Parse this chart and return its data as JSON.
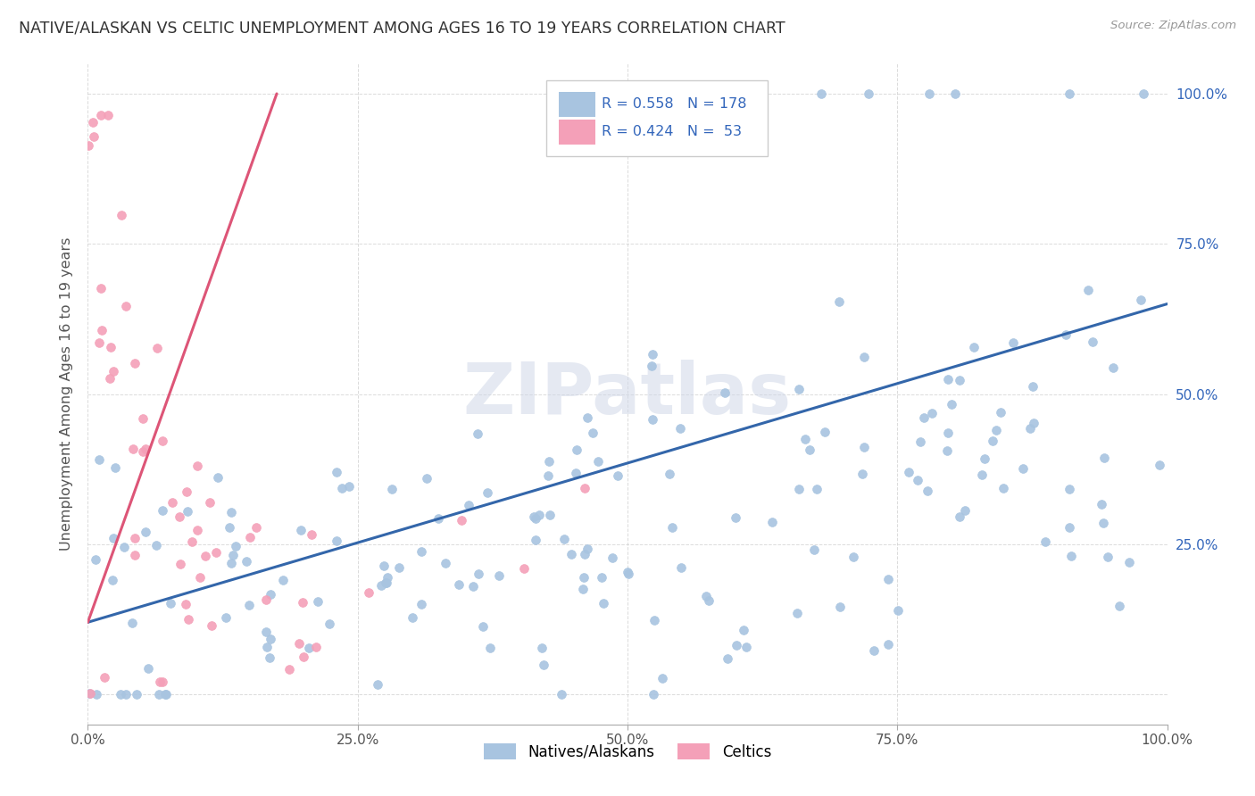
{
  "title": "NATIVE/ALASKAN VS CELTIC UNEMPLOYMENT AMONG AGES 16 TO 19 YEARS CORRELATION CHART",
  "source": "Source: ZipAtlas.com",
  "ylabel": "Unemployment Among Ages 16 to 19 years",
  "xlim": [
    0,
    1
  ],
  "ylim": [
    -0.05,
    1.05
  ],
  "xticks": [
    0,
    0.25,
    0.5,
    0.75,
    1.0
  ],
  "yticks": [
    0,
    0.25,
    0.5,
    0.75,
    1.0
  ],
  "xticklabels": [
    "0.0%",
    "25.0%",
    "50.0%",
    "75.0%",
    "100.0%"
  ],
  "yticklabels": [
    "",
    "25.0%",
    "50.0%",
    "75.0%",
    "100.0%"
  ],
  "blue_R": 0.558,
  "blue_N": 178,
  "pink_R": 0.424,
  "pink_N": 53,
  "blue_color": "#a8c4e0",
  "pink_color": "#f4a0b8",
  "blue_line_color": "#3366aa",
  "pink_line_color": "#dd5577",
  "legend_blue_fill": "#a8c4e0",
  "legend_pink_fill": "#f4a0b8",
  "background_color": "#ffffff",
  "grid_color": "#cccccc"
}
